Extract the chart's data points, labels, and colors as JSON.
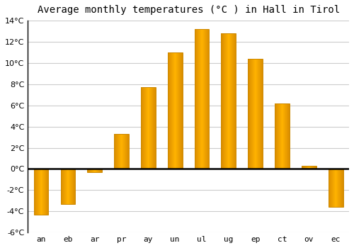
{
  "months": [
    "an",
    "eb",
    "ar",
    "pr",
    "ay",
    "un",
    "ul",
    "ug",
    "ep",
    "ct",
    "ov",
    "ec"
  ],
  "values": [
    -4.3,
    -3.3,
    -0.3,
    3.3,
    7.7,
    11.0,
    13.2,
    12.8,
    10.4,
    6.2,
    0.3,
    -3.6
  ],
  "bar_color": "#FFAA00",
  "bar_edge_color": "#CC8800",
  "title": "Average monthly temperatures (°C ) in Hall in Tirol",
  "ylim": [
    -6,
    14
  ],
  "yticks": [
    -6,
    -4,
    -2,
    0,
    2,
    4,
    6,
    8,
    10,
    12,
    14
  ],
  "background_color": "#ffffff",
  "grid_color": "#cccccc",
  "title_fontsize": 10,
  "tick_fontsize": 8,
  "zero_line_color": "#000000",
  "bar_width": 0.55
}
